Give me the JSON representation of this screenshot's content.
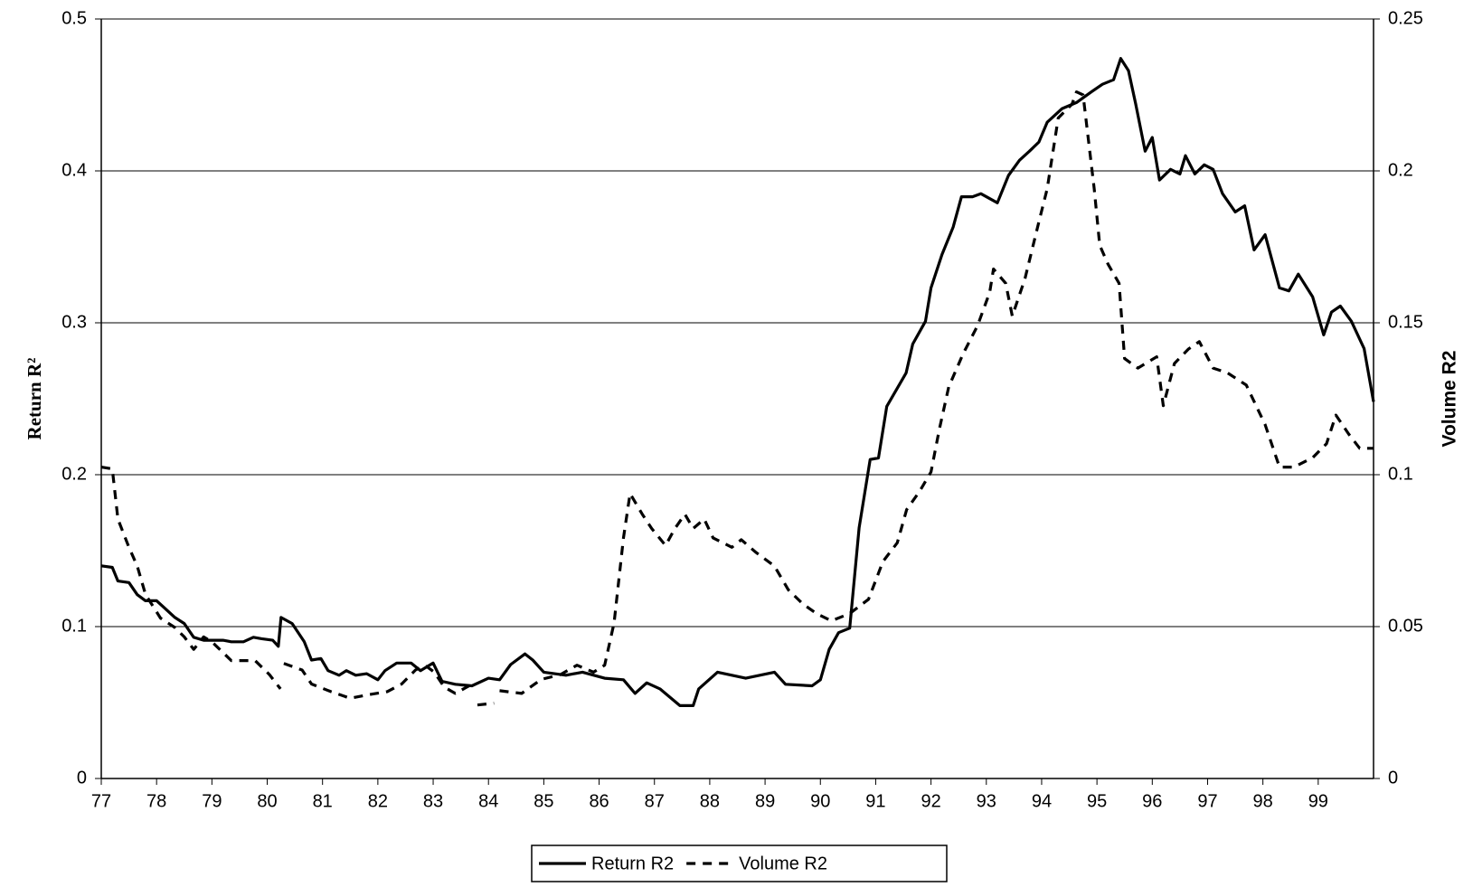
{
  "chart_data": {
    "type": "line",
    "y_label": "Return R²",
    "y2_label": "Volume R2",
    "xlim": [
      77,
      100
    ],
    "xticks": [
      77,
      78,
      79,
      80,
      81,
      82,
      83,
      84,
      85,
      86,
      87,
      88,
      89,
      90,
      91,
      92,
      93,
      94,
      95,
      96,
      97,
      98,
      99
    ],
    "ylim": [
      0,
      0.5
    ],
    "yticks": [
      0,
      0.1,
      0.2,
      0.3,
      0.4,
      0.5
    ],
    "y2lim": [
      0,
      0.25
    ],
    "y2ticks": [
      0,
      0.05,
      0.1,
      0.15,
      0.2,
      0.25
    ],
    "grid": true,
    "series": [
      {
        "name": "Return R2",
        "color": "#000000",
        "style": "solid",
        "x": [
          77.0,
          77.2,
          77.3,
          77.5,
          77.65,
          77.8,
          78.0,
          78.15,
          78.33,
          78.5,
          78.67,
          78.85,
          79.0,
          79.2,
          79.35,
          79.57,
          79.75,
          79.9,
          80.1,
          80.2,
          80.25,
          80.45,
          80.67,
          80.8,
          80.97,
          81.1,
          81.3,
          81.43,
          81.6,
          81.8,
          82.0,
          82.13,
          82.34,
          82.6,
          82.77,
          83.0,
          83.16,
          83.4,
          83.7,
          84.0,
          84.2,
          84.4,
          84.66,
          84.8,
          85.0,
          85.4,
          85.7,
          86.1,
          86.44,
          86.65,
          86.86,
          87.1,
          87.46,
          87.7,
          87.8,
          88.14,
          88.65,
          89.17,
          89.37,
          89.85,
          90.0,
          90.16,
          90.33,
          90.53,
          90.7,
          90.9,
          91.05,
          91.2,
          91.55,
          91.67,
          91.9,
          92.0,
          92.2,
          92.4,
          92.55,
          92.75,
          92.9,
          93.2,
          93.4,
          93.6,
          93.78,
          93.95,
          94.1,
          94.37,
          94.63,
          94.9,
          95.1,
          95.3,
          95.43,
          95.57,
          95.7,
          95.87,
          96.0,
          96.13,
          96.33,
          96.5,
          96.6,
          96.77,
          96.94,
          97.1,
          97.27,
          97.5,
          97.67,
          97.84,
          98.04,
          98.3,
          98.47,
          98.64,
          98.9,
          99.1,
          99.24,
          99.4,
          99.6,
          99.83,
          100.0
        ],
        "values": [
          0.14,
          0.139,
          0.13,
          0.129,
          0.121,
          0.117,
          0.117,
          0.112,
          0.106,
          0.102,
          0.093,
          0.091,
          0.091,
          0.091,
          0.09,
          0.09,
          0.093,
          0.092,
          0.091,
          0.087,
          0.106,
          0.102,
          0.09,
          0.078,
          0.079,
          0.071,
          0.068,
          0.071,
          0.068,
          0.069,
          0.065,
          0.071,
          0.076,
          0.076,
          0.071,
          0.076,
          0.064,
          0.062,
          0.061,
          0.066,
          0.065,
          0.075,
          0.082,
          0.078,
          0.07,
          0.068,
          0.07,
          0.066,
          0.065,
          0.056,
          0.063,
          0.059,
          0.048,
          0.048,
          0.059,
          0.07,
          0.066,
          0.07,
          0.062,
          0.061,
          0.065,
          0.085,
          0.096,
          0.099,
          0.165,
          0.21,
          0.211,
          0.245,
          0.267,
          0.286,
          0.301,
          0.323,
          0.345,
          0.363,
          0.383,
          0.383,
          0.385,
          0.379,
          0.397,
          0.407,
          0.413,
          0.419,
          0.432,
          0.441,
          0.445,
          0.452,
          0.457,
          0.46,
          0.474,
          0.466,
          0.444,
          0.413,
          0.422,
          0.394,
          0.401,
          0.398,
          0.41,
          0.398,
          0.404,
          0.401,
          0.385,
          0.373,
          0.377,
          0.348,
          0.358,
          0.323,
          0.321,
          0.332,
          0.317,
          0.292,
          0.307,
          0.311,
          0.301,
          0.283,
          0.248
        ]
      },
      {
        "name": "Volume R2",
        "color": "#000000",
        "style": "dashed",
        "axis": "y2",
        "x": [
          77.0,
          77.2,
          77.3,
          77.5,
          77.65,
          77.8,
          78.07,
          78.33,
          78.5,
          78.67,
          78.85,
          79.0,
          79.35,
          79.78,
          80.04,
          80.24,
          80.27,
          80.3,
          80.63,
          80.8,
          81.15,
          81.5,
          81.83,
          82.17,
          82.43,
          82.68,
          82.85,
          83.02,
          83.2,
          83.4,
          83.7,
          83.75,
          83.8,
          84.1,
          84.15,
          84.2,
          84.6,
          84.95,
          85.3,
          85.6,
          85.9,
          86.1,
          86.27,
          86.44,
          86.56,
          86.78,
          86.95,
          87.2,
          87.37,
          87.55,
          87.7,
          87.9,
          88.06,
          88.4,
          88.57,
          88.83,
          89.17,
          89.42,
          89.68,
          89.93,
          90.2,
          90.53,
          90.87,
          91.13,
          91.39,
          91.56,
          91.8,
          92.0,
          92.15,
          92.32,
          92.58,
          92.84,
          93.06,
          93.13,
          93.35,
          93.47,
          93.7,
          93.95,
          94.1,
          94.3,
          94.55,
          94.63,
          94.75,
          94.95,
          95.05,
          95.2,
          95.4,
          95.5,
          95.74,
          96.08,
          96.2,
          96.4,
          96.65,
          96.85,
          97.1,
          97.36,
          97.7,
          98.04,
          98.3,
          98.56,
          98.9,
          99.15,
          99.32,
          99.55,
          99.75,
          100.0
        ],
        "values": [
          0.1025,
          0.1019,
          0.0854,
          0.0761,
          0.0699,
          0.0606,
          0.0528,
          0.0497,
          0.0466,
          0.0425,
          0.0466,
          0.045,
          0.0388,
          0.0388,
          0.0342,
          0.0295,
          null,
          0.0379,
          0.0357,
          0.0311,
          0.0286,
          0.0264,
          0.0276,
          0.0286,
          0.0311,
          0.0357,
          0.0373,
          0.035,
          0.0301,
          0.028,
          0.031,
          null,
          0.0242,
          0.0248,
          null,
          0.0289,
          0.028,
          0.0326,
          0.0342,
          0.0373,
          0.035,
          0.0373,
          0.0512,
          0.0792,
          0.0938,
          0.087,
          0.0823,
          0.0767,
          0.0823,
          0.087,
          0.0823,
          0.0854,
          0.0792,
          0.0761,
          0.0786,
          0.0745,
          0.0699,
          0.0621,
          0.0575,
          0.0543,
          0.0519,
          0.0543,
          0.059,
          0.0714,
          0.0776,
          0.0885,
          0.0947,
          0.1009,
          0.1149,
          0.1289,
          0.1398,
          0.149,
          0.16,
          0.1677,
          0.163,
          0.1522,
          0.1646,
          0.1832,
          0.1941,
          0.2174,
          0.222,
          0.226,
          0.225,
          0.1941,
          0.1755,
          0.1693,
          0.163,
          0.1382,
          0.1351,
          0.1388,
          0.1227,
          0.1366,
          0.1413,
          0.1438,
          0.1351,
          0.1335,
          0.1295,
          0.1165,
          0.1025,
          0.1025,
          0.1056,
          0.1102,
          0.1196,
          0.1134,
          0.1087,
          0.1087
        ]
      }
    ]
  }
}
